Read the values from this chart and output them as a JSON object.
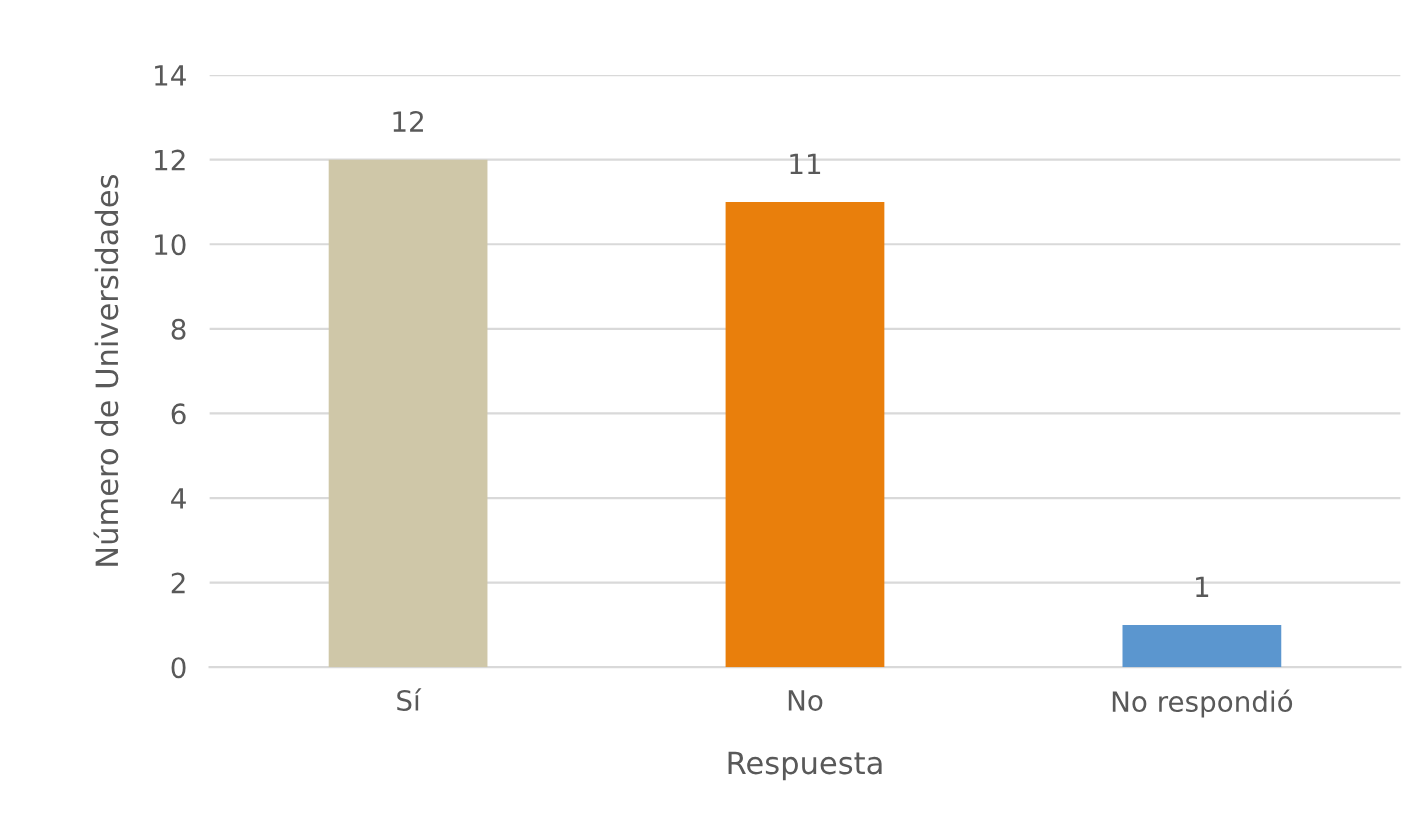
{
  "chart_data": {
    "type": "bar",
    "xlabel": "Respuesta",
    "ylabel": "Número de Universidades",
    "categories": [
      "Sí",
      "No",
      "No respondió"
    ],
    "values": [
      12,
      11,
      1
    ],
    "colors": [
      "#cfc7a8",
      "#e97f0c",
      "#5b96cf"
    ],
    "ylim": [
      0,
      14
    ],
    "yticks": [
      0,
      2,
      4,
      6,
      8,
      10,
      12,
      14
    ],
    "grid": "y",
    "data_labels": true
  }
}
